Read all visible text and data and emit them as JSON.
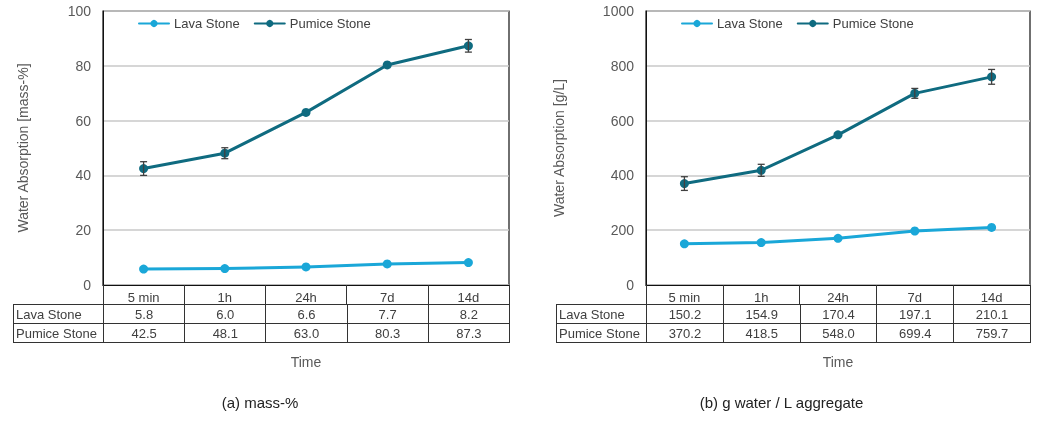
{
  "chart_data": [
    {
      "type": "line",
      "ylabel": "Water Absorption [mass-%]",
      "xlabel": "Time",
      "categories": [
        "5 min",
        "1h",
        "24h",
        "7d",
        "14d"
      ],
      "series": [
        {
          "name": "Lava Stone",
          "color": "#1aa7d8",
          "values": [
            5.8,
            6.0,
            6.6,
            7.7,
            8.2
          ],
          "value_labels": [
            "5.8",
            "6.0",
            "6.6",
            "7.7",
            "8.2"
          ]
        },
        {
          "name": "Pumice Stone",
          "color": "#0f6b80",
          "values": [
            42.5,
            48.1,
            63.0,
            80.3,
            87.3
          ],
          "errors": [
            2.5,
            2.0,
            null,
            null,
            2.3
          ],
          "value_labels": [
            "42.5",
            "48.1",
            "63.0",
            "80.3",
            "87.3"
          ]
        }
      ],
      "ylim": [
        0,
        100
      ],
      "yticks": [
        0,
        20,
        40,
        60,
        80,
        100
      ],
      "grid": "y",
      "legend": "top",
      "marker": "circle",
      "annotations": [
        "(a) mass-%"
      ]
    },
    {
      "type": "line",
      "ylabel": "Water Absorption [g/L]",
      "xlabel": "Time",
      "categories": [
        "5 min",
        "1h",
        "24h",
        "7d",
        "14d"
      ],
      "series": [
        {
          "name": "Lava Stone",
          "color": "#1aa7d8",
          "values": [
            150.2,
            154.9,
            170.4,
            197.1,
            210.1
          ],
          "value_labels": [
            "150.2",
            "154.9",
            "170.4",
            "197.1",
            "210.1"
          ]
        },
        {
          "name": "Pumice Stone",
          "color": "#0f6b80",
          "values": [
            370.2,
            418.5,
            548.0,
            699.4,
            759.7
          ],
          "errors": [
            25,
            22,
            null,
            18,
            27
          ],
          "value_labels": [
            "370.2",
            "418.5",
            "548.0",
            "699.4",
            "759.7"
          ]
        }
      ],
      "ylim": [
        0,
        1000
      ],
      "yticks": [
        0,
        200,
        400,
        600,
        800,
        1000
      ],
      "grid": "y",
      "legend": "top",
      "marker": "circle",
      "annotations": [
        "(b) g water / L aggregate"
      ]
    }
  ]
}
